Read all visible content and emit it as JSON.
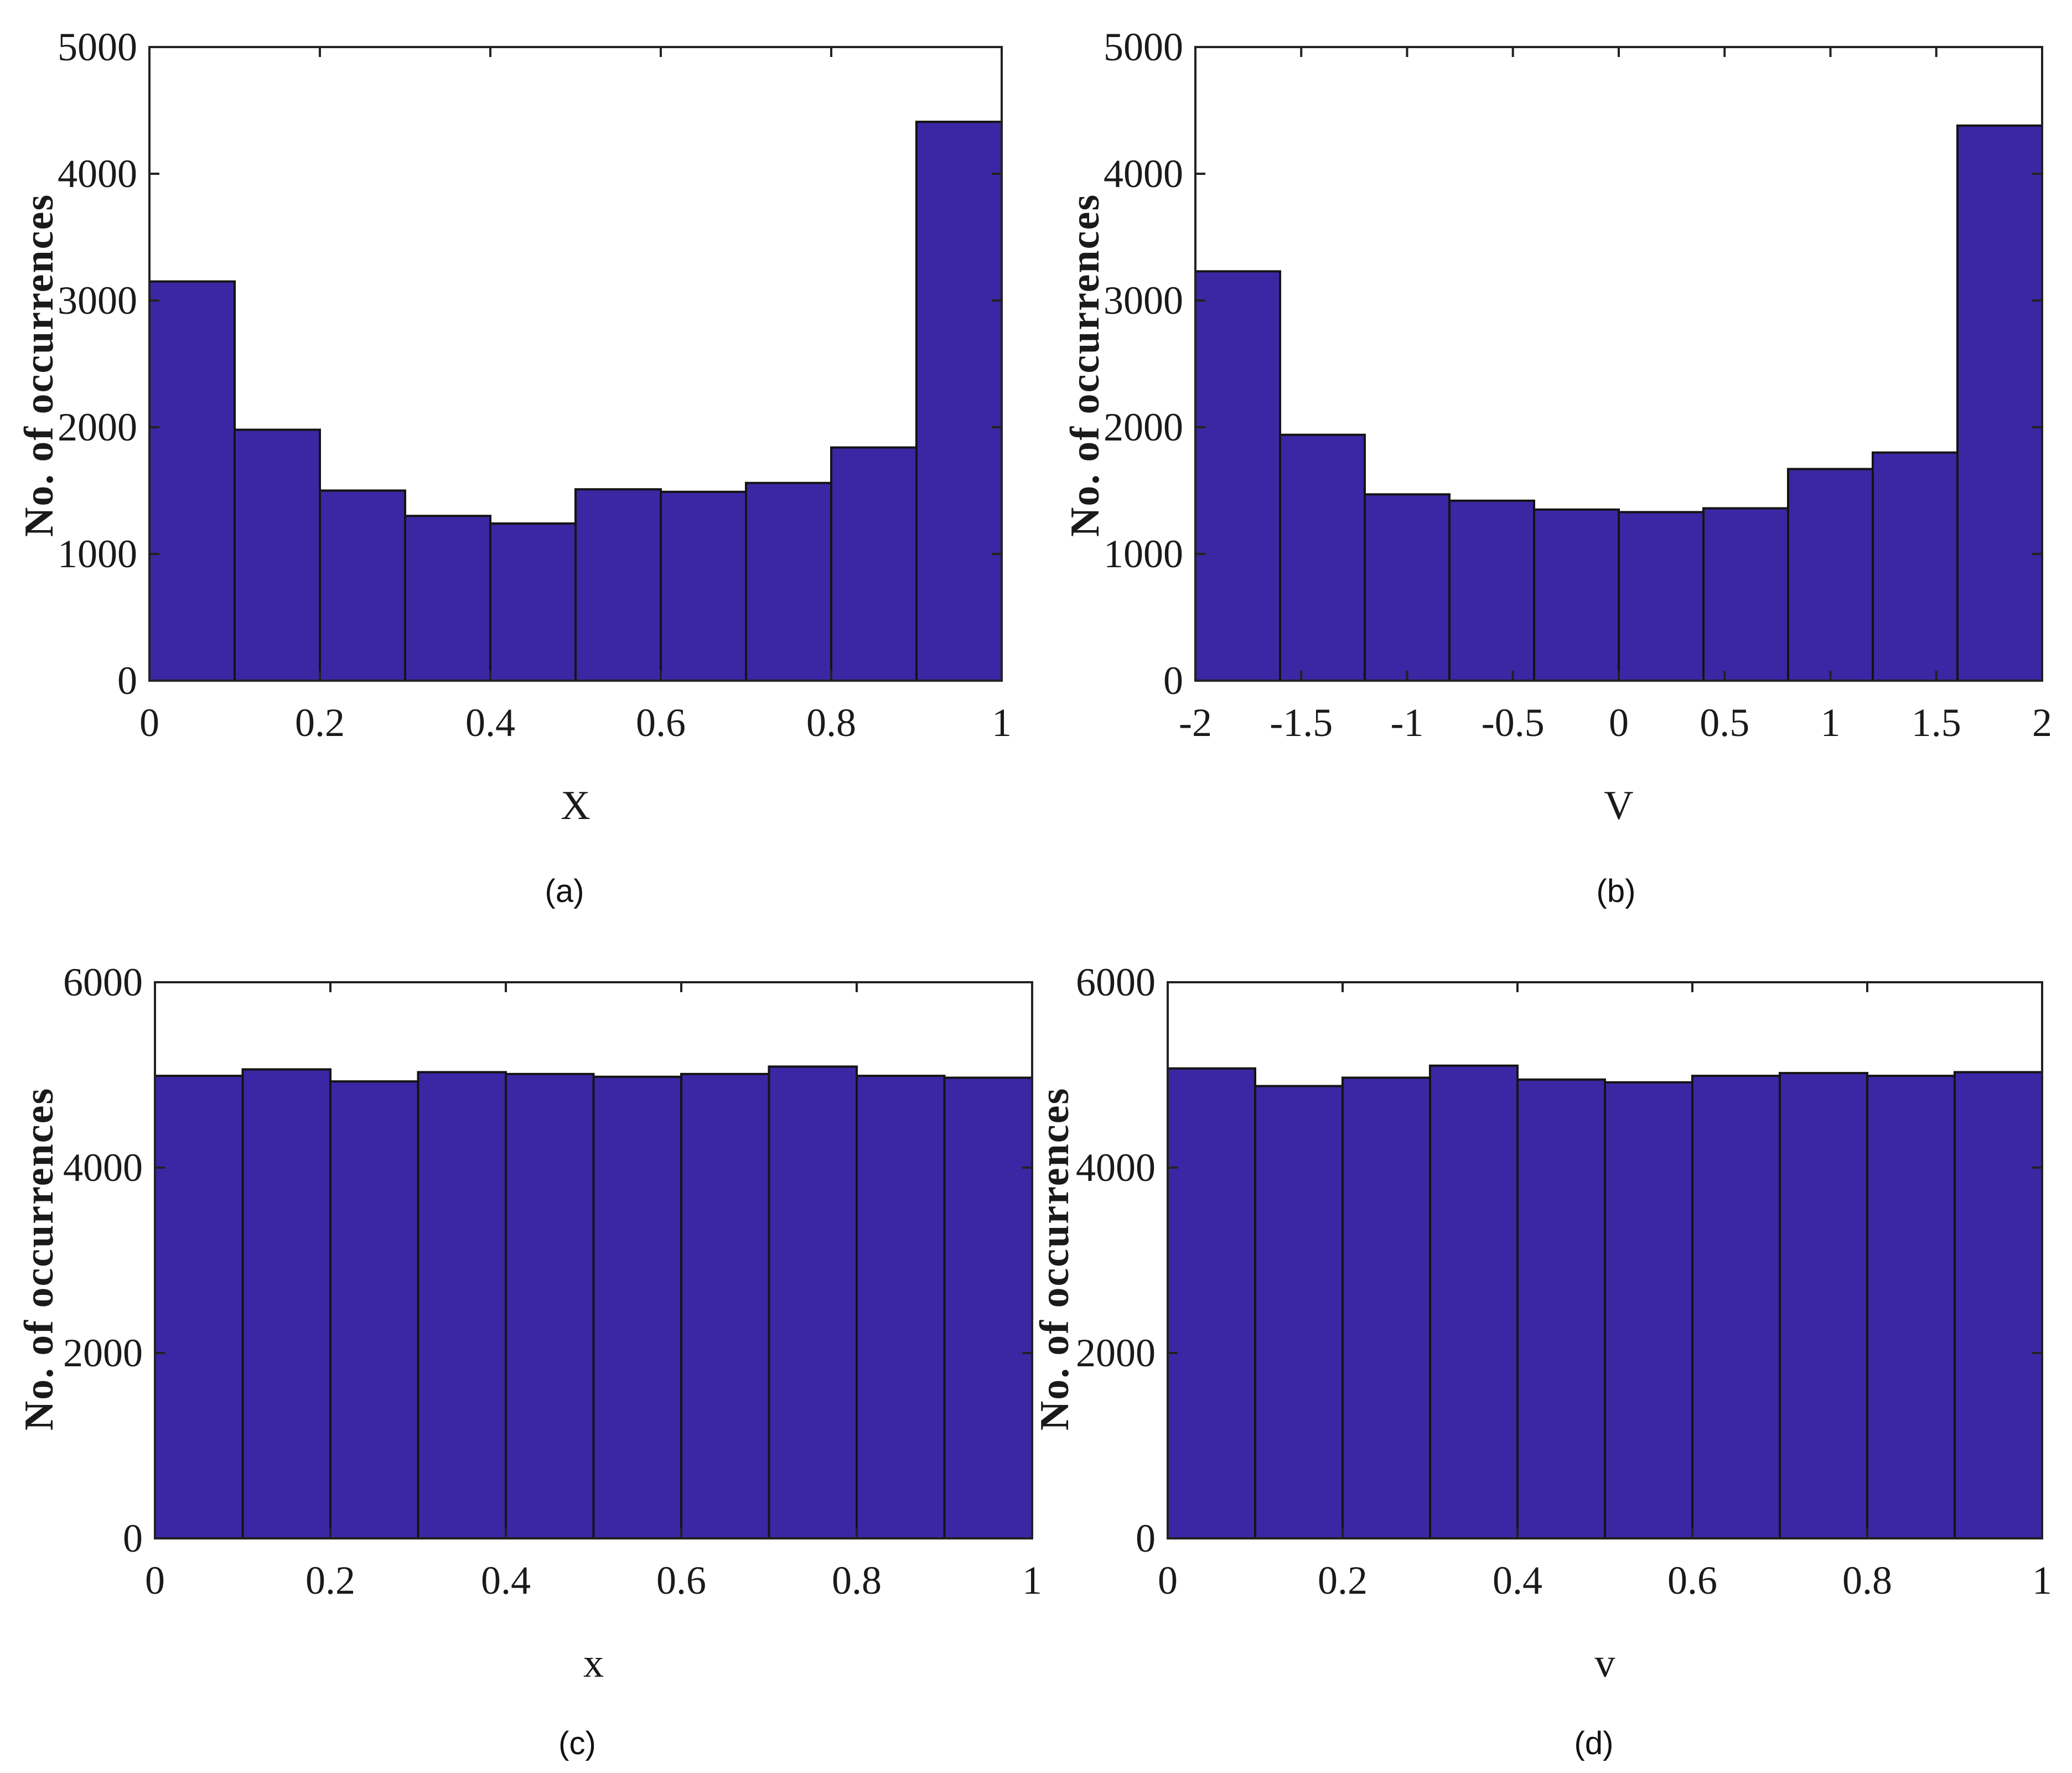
{
  "figure": {
    "bar_color": "#3b27a3",
    "background": "#ffffff"
  },
  "chart_data": [
    {
      "type": "bar",
      "caption": "(a)",
      "xlabel": "X",
      "ylabel": "No. of occurrences",
      "xlim": [
        0,
        1
      ],
      "ylim": [
        0,
        5000
      ],
      "xticks": [
        0,
        0.2,
        0.4,
        0.6,
        0.8,
        1
      ],
      "xtick_labels": [
        "0",
        "0.2",
        "0.4",
        "0.6",
        "0.8",
        "1"
      ],
      "yticks": [
        0,
        1000,
        2000,
        3000,
        4000,
        5000
      ],
      "ytick_labels": [
        "0",
        "1000",
        "2000",
        "3000",
        "4000",
        "5000"
      ],
      "bin_edges": [
        0,
        0.1,
        0.2,
        0.3,
        0.4,
        0.5,
        0.6,
        0.7,
        0.8,
        0.9,
        1.0
      ],
      "values": [
        3150,
        1980,
        1500,
        1300,
        1240,
        1510,
        1490,
        1560,
        1840,
        4410
      ],
      "grid": false
    },
    {
      "type": "bar",
      "caption": "(b)",
      "xlabel": "V",
      "ylabel": "No. of occurrences",
      "xlim": [
        -2,
        2
      ],
      "ylim": [
        0,
        5000
      ],
      "xticks": [
        -2,
        -1.5,
        -1,
        -0.5,
        0,
        0.5,
        1,
        1.5,
        2
      ],
      "xtick_labels": [
        "-2",
        "-1.5",
        "-1",
        "-0.5",
        "0",
        "0.5",
        "1",
        "1.5",
        "2"
      ],
      "yticks": [
        0,
        1000,
        2000,
        3000,
        4000,
        5000
      ],
      "ytick_labels": [
        "0",
        "1000",
        "2000",
        "3000",
        "4000",
        "5000"
      ],
      "bin_edges": [
        -2,
        -1.6,
        -1.2,
        -0.8,
        -0.4,
        0,
        0.4,
        0.8,
        1.2,
        1.6,
        2.0
      ],
      "values": [
        3230,
        1940,
        1470,
        1420,
        1350,
        1330,
        1360,
        1670,
        1800,
        4380
      ],
      "grid": false
    },
    {
      "type": "bar",
      "caption": "(c)",
      "xlabel": "x",
      "ylabel": "No. of occurrences",
      "xlim": [
        0,
        1
      ],
      "ylim": [
        0,
        6000
      ],
      "xticks": [
        0,
        0.2,
        0.4,
        0.6,
        0.8,
        1
      ],
      "xtick_labels": [
        "0",
        "0.2",
        "0.4",
        "0.6",
        "0.8",
        "1"
      ],
      "yticks": [
        0,
        2000,
        4000,
        6000
      ],
      "ytick_labels": [
        "0",
        "2000",
        "4000",
        "6000"
      ],
      "bin_edges": [
        0,
        0.1,
        0.2,
        0.3,
        0.4,
        0.5,
        0.6,
        0.7,
        0.8,
        0.9,
        1.0
      ],
      "values": [
        4990,
        5060,
        4930,
        5030,
        5010,
        4980,
        5010,
        5090,
        4990,
        4970
      ],
      "grid": false
    },
    {
      "type": "bar",
      "caption": "(d)",
      "xlabel": "v",
      "ylabel": "No. of occurrences",
      "xlim": [
        0,
        1
      ],
      "ylim": [
        0,
        6000
      ],
      "xticks": [
        0,
        0.2,
        0.4,
        0.6,
        0.8,
        1
      ],
      "xtick_labels": [
        "0",
        "0.2",
        "0.4",
        "0.6",
        "0.8",
        "1"
      ],
      "yticks": [
        0,
        2000,
        4000,
        6000
      ],
      "ytick_labels": [
        "0",
        "2000",
        "4000",
        "6000"
      ],
      "bin_edges": [
        0,
        0.1,
        0.2,
        0.3,
        0.4,
        0.5,
        0.6,
        0.7,
        0.8,
        0.9,
        1.0
      ],
      "values": [
        5070,
        4880,
        4970,
        5100,
        4950,
        4920,
        4990,
        5020,
        4990,
        5030
      ],
      "grid": false
    }
  ]
}
